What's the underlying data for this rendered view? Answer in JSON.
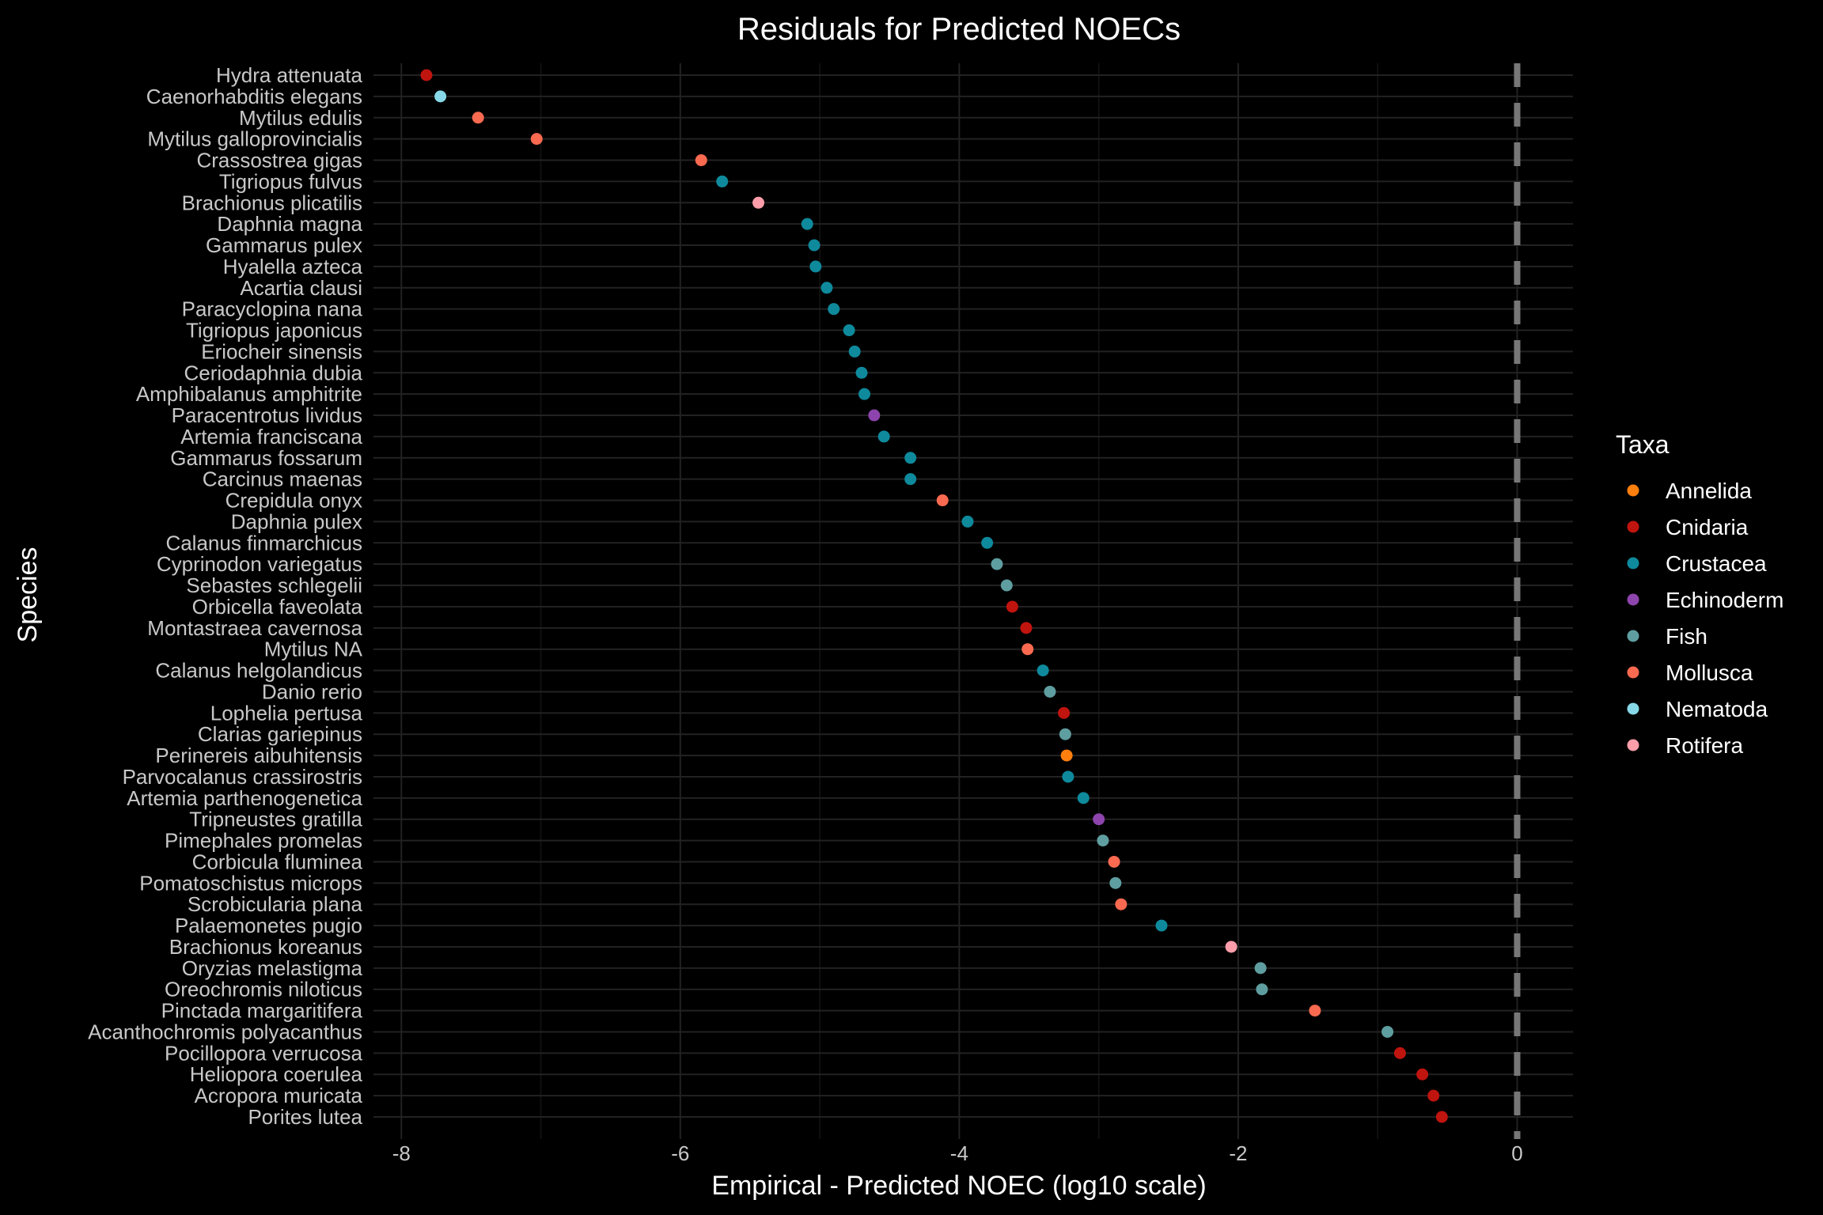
{
  "chart_data": {
    "type": "scatter",
    "title": "Residuals for Predicted NOECs",
    "xlabel": "Empirical - Predicted NOEC (log10 scale)",
    "ylabel": "Species",
    "xlim": [
      -8.2,
      0.4
    ],
    "x_ticks": [
      -8,
      -6,
      -4,
      -2,
      0
    ],
    "x_tick_labels": [
      "-8",
      "-6",
      "-4",
      "-2",
      "0"
    ],
    "reference_line_x": 0,
    "grid": true,
    "legend": {
      "title": "Taxa",
      "position": "right",
      "entries": [
        {
          "name": "Annelida",
          "color": "#FF7F0E"
        },
        {
          "name": "Cnidaria",
          "color": "#C0140F"
        },
        {
          "name": "Crustacea",
          "color": "#0E8A9C"
        },
        {
          "name": "Echinoderm",
          "color": "#8E44AD"
        },
        {
          "name": "Fish",
          "color": "#5F9EA0"
        },
        {
          "name": "Mollusca",
          "color": "#FA6A50"
        },
        {
          "name": "Nematoda",
          "color": "#87D8E8"
        },
        {
          "name": "Rotifera",
          "color": "#FF9EAA"
        }
      ]
    },
    "points": [
      {
        "species": "Hydra attenuata",
        "x": -7.82,
        "taxa": "Cnidaria"
      },
      {
        "species": "Caenorhabditis elegans",
        "x": -7.72,
        "taxa": "Nematoda"
      },
      {
        "species": "Mytilus edulis",
        "x": -7.45,
        "taxa": "Mollusca"
      },
      {
        "species": "Mytilus galloprovincialis",
        "x": -7.03,
        "taxa": "Mollusca"
      },
      {
        "species": "Crassostrea gigas",
        "x": -5.85,
        "taxa": "Mollusca"
      },
      {
        "species": "Tigriopus fulvus",
        "x": -5.7,
        "taxa": "Crustacea"
      },
      {
        "species": "Brachionus plicatilis",
        "x": -5.44,
        "taxa": "Rotifera"
      },
      {
        "species": "Daphnia magna",
        "x": -5.09,
        "taxa": "Crustacea"
      },
      {
        "species": "Gammarus pulex",
        "x": -5.04,
        "taxa": "Crustacea"
      },
      {
        "species": "Hyalella azteca",
        "x": -5.03,
        "taxa": "Crustacea"
      },
      {
        "species": "Acartia clausi",
        "x": -4.95,
        "taxa": "Crustacea"
      },
      {
        "species": "Paracyclopina nana",
        "x": -4.9,
        "taxa": "Crustacea"
      },
      {
        "species": "Tigriopus japonicus",
        "x": -4.79,
        "taxa": "Crustacea"
      },
      {
        "species": "Eriocheir sinensis",
        "x": -4.75,
        "taxa": "Crustacea"
      },
      {
        "species": "Ceriodaphnia dubia",
        "x": -4.7,
        "taxa": "Crustacea"
      },
      {
        "species": "Amphibalanus amphitrite",
        "x": -4.68,
        "taxa": "Crustacea"
      },
      {
        "species": "Paracentrotus lividus",
        "x": -4.61,
        "taxa": "Echinoderm"
      },
      {
        "species": "Artemia franciscana",
        "x": -4.54,
        "taxa": "Crustacea"
      },
      {
        "species": "Gammarus fossarum",
        "x": -4.35,
        "taxa": "Crustacea"
      },
      {
        "species": "Carcinus maenas",
        "x": -4.35,
        "taxa": "Crustacea"
      },
      {
        "species": "Crepidula onyx",
        "x": -4.12,
        "taxa": "Mollusca"
      },
      {
        "species": "Daphnia pulex",
        "x": -3.94,
        "taxa": "Crustacea"
      },
      {
        "species": "Calanus finmarchicus",
        "x": -3.8,
        "taxa": "Crustacea"
      },
      {
        "species": "Cyprinodon variegatus",
        "x": -3.73,
        "taxa": "Fish"
      },
      {
        "species": "Sebastes schlegelii",
        "x": -3.66,
        "taxa": "Fish"
      },
      {
        "species": "Orbicella faveolata",
        "x": -3.62,
        "taxa": "Cnidaria"
      },
      {
        "species": "Montastraea cavernosa",
        "x": -3.52,
        "taxa": "Cnidaria"
      },
      {
        "species": "Mytilus NA",
        "x": -3.51,
        "taxa": "Mollusca"
      },
      {
        "species": "Calanus helgolandicus",
        "x": -3.4,
        "taxa": "Crustacea"
      },
      {
        "species": "Danio rerio",
        "x": -3.35,
        "taxa": "Fish"
      },
      {
        "species": "Lophelia pertusa",
        "x": -3.25,
        "taxa": "Cnidaria"
      },
      {
        "species": "Clarias gariepinus",
        "x": -3.24,
        "taxa": "Fish"
      },
      {
        "species": "Perinereis aibuhitensis",
        "x": -3.23,
        "taxa": "Annelida"
      },
      {
        "species": "Parvocalanus crassirostris",
        "x": -3.22,
        "taxa": "Crustacea"
      },
      {
        "species": "Artemia parthenogenetica",
        "x": -3.11,
        "taxa": "Crustacea"
      },
      {
        "species": "Tripneustes gratilla",
        "x": -3.0,
        "taxa": "Echinoderm"
      },
      {
        "species": "Pimephales promelas",
        "x": -2.97,
        "taxa": "Fish"
      },
      {
        "species": "Corbicula fluminea",
        "x": -2.89,
        "taxa": "Mollusca"
      },
      {
        "species": "Pomatoschistus microps",
        "x": -2.88,
        "taxa": "Fish"
      },
      {
        "species": "Scrobicularia plana",
        "x": -2.84,
        "taxa": "Mollusca"
      },
      {
        "species": "Palaemonetes pugio",
        "x": -2.55,
        "taxa": "Crustacea"
      },
      {
        "species": "Brachionus koreanus",
        "x": -2.05,
        "taxa": "Rotifera"
      },
      {
        "species": "Oryzias melastigma",
        "x": -1.84,
        "taxa": "Fish"
      },
      {
        "species": "Oreochromis niloticus",
        "x": -1.83,
        "taxa": "Fish"
      },
      {
        "species": "Pinctada margaritifera",
        "x": -1.45,
        "taxa": "Mollusca"
      },
      {
        "species": "Acanthochromis polyacanthus",
        "x": -0.93,
        "taxa": "Fish"
      },
      {
        "species": "Pocillopora verrucosa",
        "x": -0.84,
        "taxa": "Cnidaria"
      },
      {
        "species": "Heliopora coerulea",
        "x": -0.68,
        "taxa": "Cnidaria"
      },
      {
        "species": "Acropora muricata",
        "x": -0.6,
        "taxa": "Cnidaria"
      },
      {
        "species": "Porites lutea",
        "x": -0.54,
        "taxa": "Cnidaria"
      }
    ]
  }
}
